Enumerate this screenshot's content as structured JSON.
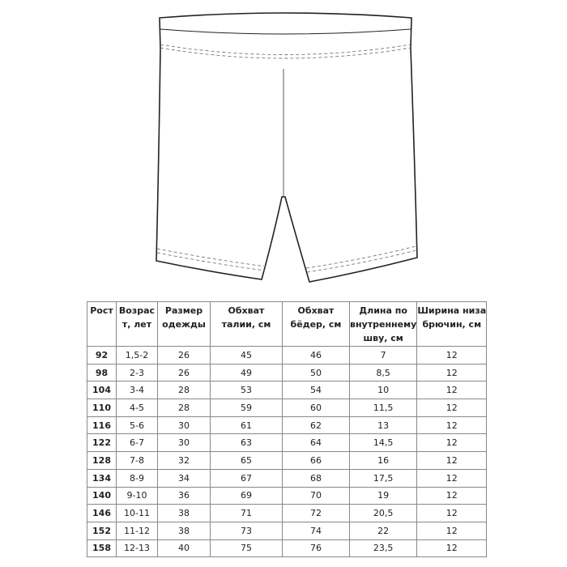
{
  "table": {
    "headers": [
      "Рост",
      "Возрас т, лет",
      "Размер одежды",
      "Обхват талии, см",
      "Обхват бёдер, см",
      "Длина по внутреннему шву, см",
      "Ширина низа брючин, см"
    ],
    "rows": [
      [
        "92",
        "1,5-2",
        "26",
        "45",
        "46",
        "7",
        "12"
      ],
      [
        "98",
        "2-3",
        "26",
        "49",
        "50",
        "8,5",
        "12"
      ],
      [
        "104",
        "3-4",
        "28",
        "53",
        "54",
        "10",
        "12"
      ],
      [
        "110",
        "4-5",
        "28",
        "59",
        "60",
        "11,5",
        "12"
      ],
      [
        "116",
        "5-6",
        "30",
        "61",
        "62",
        "13",
        "12"
      ],
      [
        "122",
        "6-7",
        "30",
        "63",
        "64",
        "14,5",
        "12"
      ],
      [
        "128",
        "7-8",
        "32",
        "65",
        "66",
        "16",
        "12"
      ],
      [
        "134",
        "8-9",
        "34",
        "67",
        "68",
        "17,5",
        "12"
      ],
      [
        "140",
        "9-10",
        "36",
        "69",
        "70",
        "19",
        "12"
      ],
      [
        "146",
        "10-11",
        "38",
        "71",
        "72",
        "20,5",
        "12"
      ],
      [
        "152",
        "11-12",
        "38",
        "73",
        "74",
        "22",
        "12"
      ],
      [
        "158",
        "12-13",
        "40",
        "75",
        "76",
        "23,5",
        "12"
      ]
    ]
  }
}
